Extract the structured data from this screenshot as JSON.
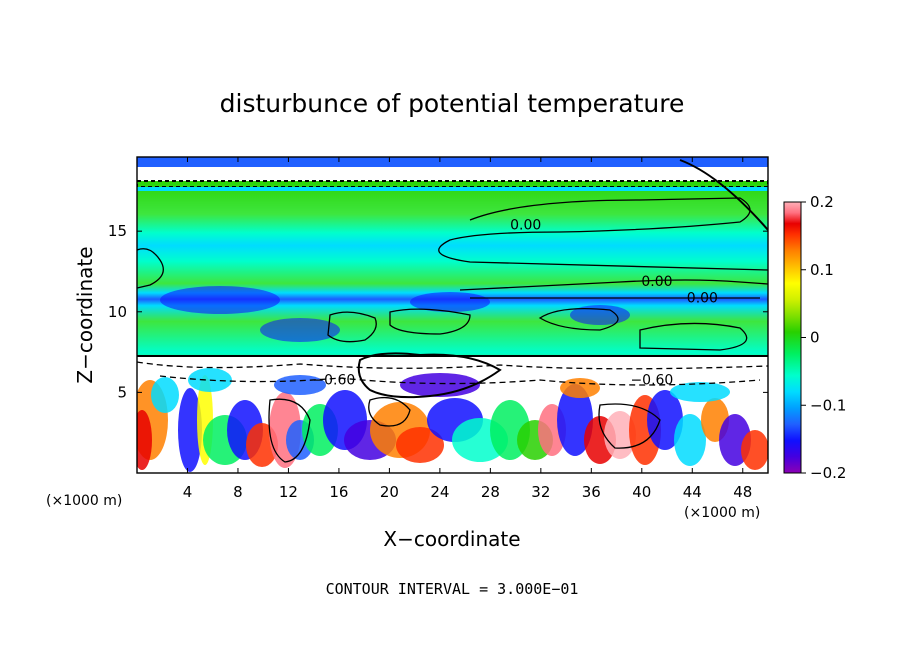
{
  "chart_data": {
    "type": "heatmap",
    "title": "disturbunce of potential temperature",
    "xlabel": "X−coordinate",
    "ylabel": "Z−coordinate",
    "x_unit_left": "(×1000 m)",
    "x_unit_right": "(×1000 m)",
    "x_ticks": [
      "4",
      "8",
      "12",
      "16",
      "20",
      "24",
      "28",
      "32",
      "36",
      "40",
      "44",
      "48"
    ],
    "x_tick_values": [
      4,
      8,
      12,
      16,
      20,
      24,
      28,
      32,
      36,
      40,
      44,
      48
    ],
    "y_ticks": [
      "5",
      "10",
      "15"
    ],
    "y_tick_values": [
      5,
      10,
      15
    ],
    "xlim": [
      0,
      50
    ],
    "ylim": [
      0,
      19.6
    ],
    "colorbar": {
      "ticks": [
        "0.2",
        "0.1",
        "0",
        "−0.1",
        "−0.2"
      ],
      "tick_values": [
        0.2,
        0.1,
        0,
        -0.1,
        -0.2
      ],
      "range": [
        -0.2,
        0.2
      ],
      "colors": [
        "#8c00b4",
        "#4400e0",
        "#1010ff",
        "#2060ff",
        "#00a0ff",
        "#00dcff",
        "#00ffcc",
        "#00f060",
        "#28d000",
        "#80e000",
        "#d0f000",
        "#ffff00",
        "#ffc000",
        "#ff8000",
        "#ff3000",
        "#e80000",
        "#ff7080",
        "#ffb0b8"
      ]
    },
    "contour_labels": [
      {
        "text": "0.00",
        "x": 30.8,
        "z": 15.4
      },
      {
        "text": "0.00",
        "x": 41.2,
        "z": 11.9
      },
      {
        "text": "0.00",
        "x": 44.8,
        "z": 10.9
      },
      {
        "text": "−0.60",
        "x": 15.6,
        "z": 5.8
      },
      {
        "text": "−0.60",
        "x": 40.8,
        "z": 5.8
      }
    ],
    "footer": "CONTOUR INTERVAL = 3.000E−01"
  },
  "colors": {
    "background": "#ffffff",
    "axis": "#000000",
    "green": "#3ee63e",
    "cyan": "#00dcff",
    "blue": "#1010ff"
  }
}
